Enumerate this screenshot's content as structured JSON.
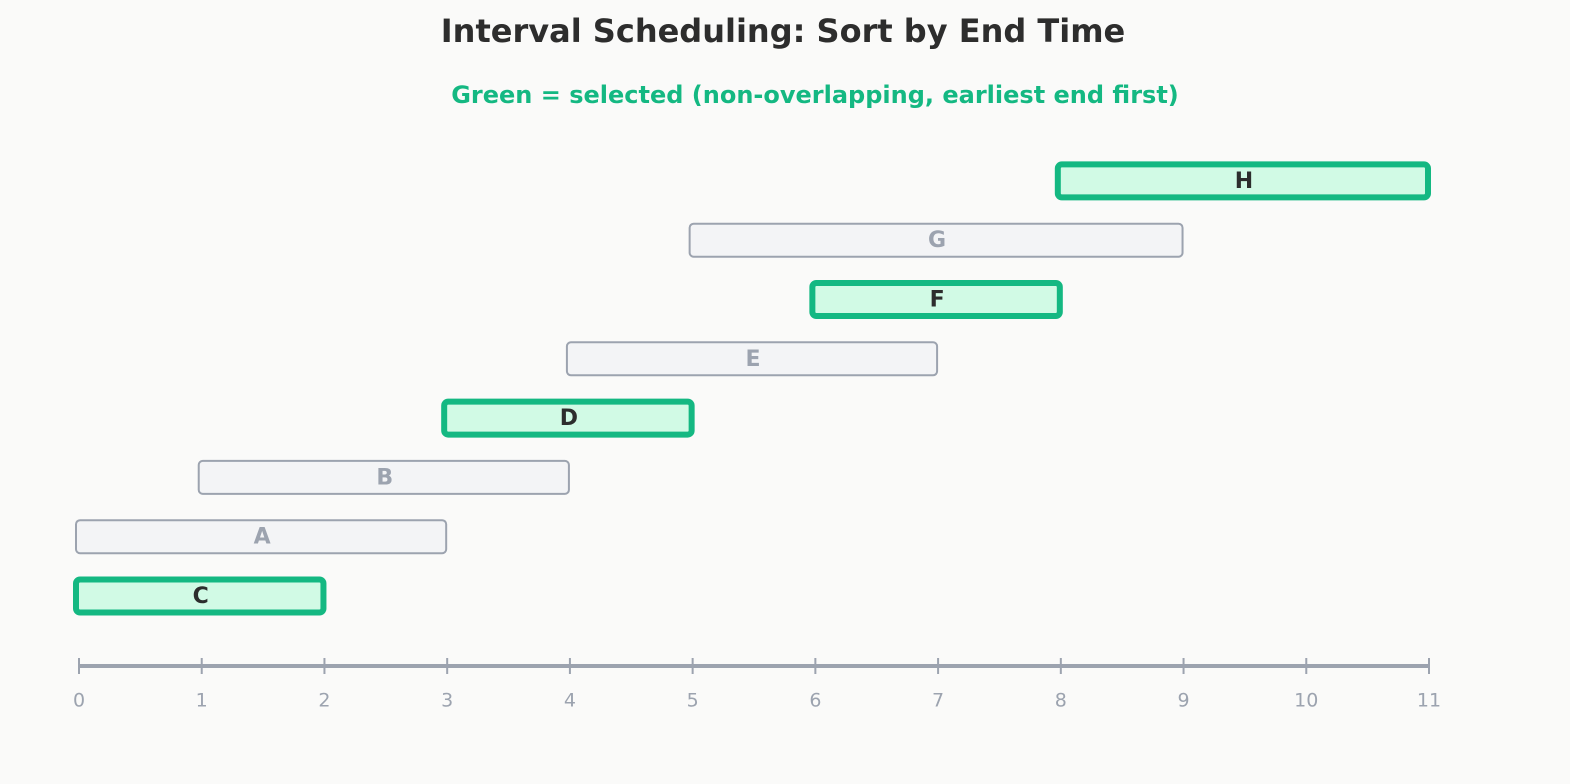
{
  "chart_data": {
    "type": "timeline",
    "title": "Interval Scheduling: Sort by End Time",
    "subtitle": "Green = selected (non-overlapping, earliest end first)",
    "categories": [
      "C",
      "A",
      "B",
      "D",
      "E",
      "F",
      "G",
      "H"
    ],
    "start": [
      0,
      0,
      1,
      3,
      4,
      6,
      5,
      8
    ],
    "end": [
      2,
      3,
      4,
      5,
      7,
      8,
      9,
      11
    ],
    "selected": [
      true,
      false,
      false,
      true,
      false,
      true,
      false,
      true
    ],
    "selected_color": "#14b882",
    "color": "#9ca3af",
    "xlim": [
      0,
      11
    ],
    "xticks": [
      0,
      1,
      2,
      3,
      4,
      5,
      6,
      7,
      8,
      9,
      10,
      11
    ]
  }
}
